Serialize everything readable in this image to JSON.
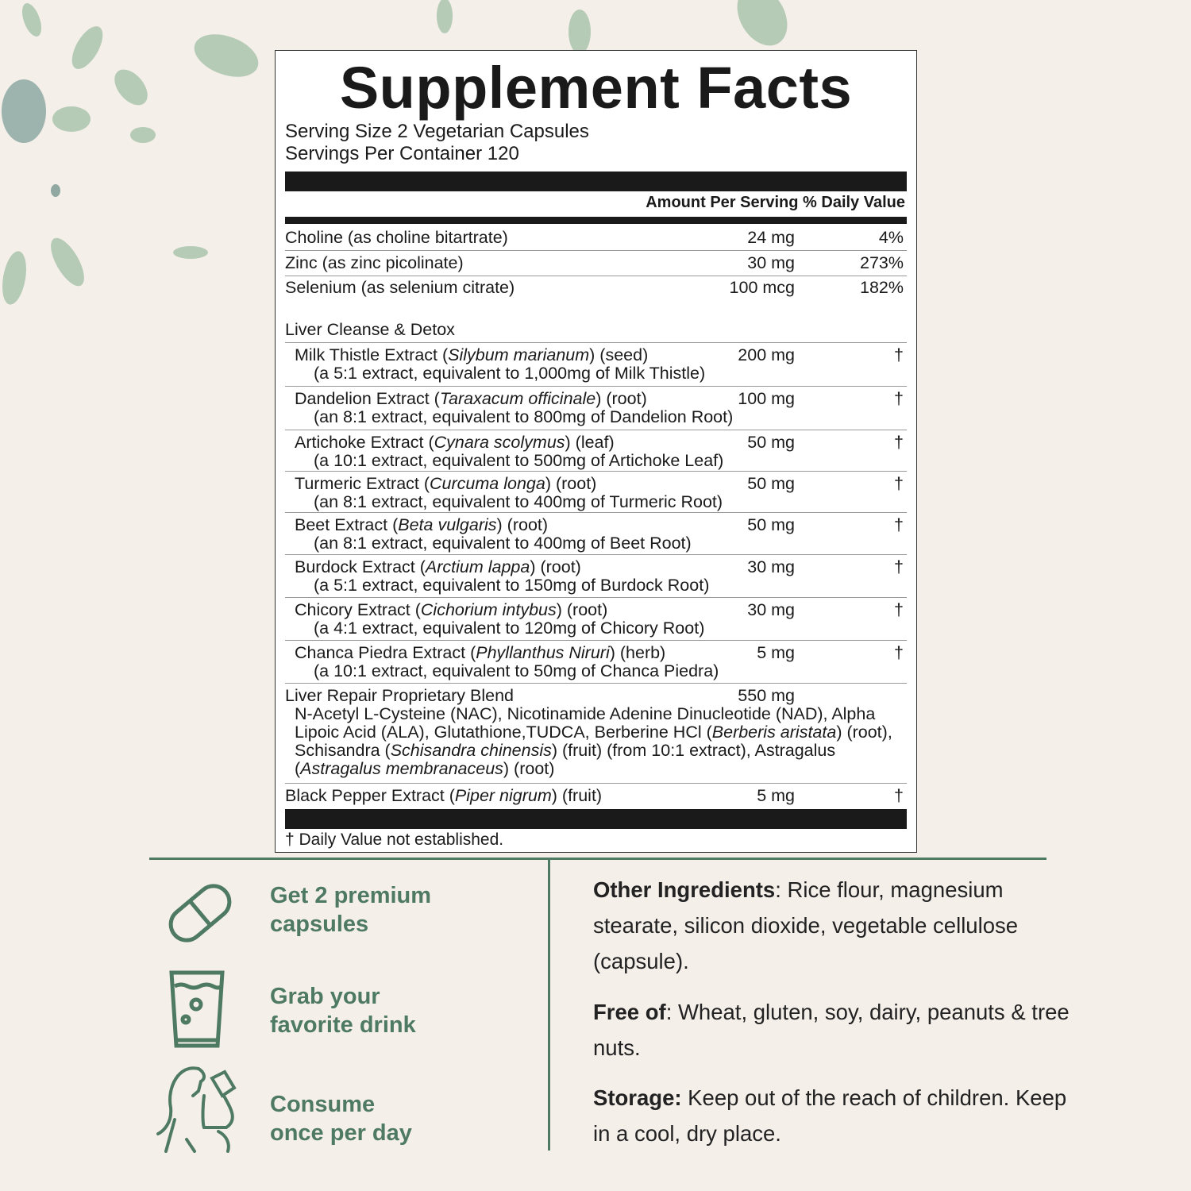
{
  "title": "Supplement Facts",
  "serving_size": "Serving Size 2 Vegetarian Capsules",
  "servings_per_container": "Servings Per Container 120",
  "header": "Amount Per Serving % Daily Value",
  "vitamins": [
    {
      "name": "Choline (as choline bitartrate)",
      "amount": "24 mg",
      "dv": "4%"
    },
    {
      "name": "Zinc (as zinc picolinate)",
      "amount": "30 mg",
      "dv": "273%"
    },
    {
      "name": "Selenium (as selenium citrate)",
      "amount": "100 mcg",
      "dv": "182%"
    }
  ],
  "group_label": "Liver Cleanse & Detox",
  "extracts": [
    {
      "prefix": "Milk Thistle Extract (",
      "latin": "Silybum marianum",
      "suffix": ") (seed)",
      "detail": "(a 5:1 extract, equivalent to 1,000mg of Milk Thistle)",
      "amount": "200 mg",
      "dv": "†"
    },
    {
      "prefix": "Dandelion Extract (",
      "latin": "Taraxacum officinale",
      "suffix": ") (root)",
      "detail": "(an 8:1 extract, equivalent to 800mg of Dandelion Root)",
      "amount": "100 mg",
      "dv": "†"
    },
    {
      "prefix": "Artichoke Extract (",
      "latin": "Cynara scolymus",
      "suffix": ") (leaf)",
      "detail": "(a 10:1 extract, equivalent to 500mg of Artichoke Leaf)",
      "amount": "50 mg",
      "dv": "†"
    },
    {
      "prefix": "Turmeric Extract (",
      "latin": "Curcuma longa",
      "suffix": ") (root)",
      "detail": "(an 8:1 extract, equivalent to 400mg of Turmeric Root)",
      "amount": "50 mg",
      "dv": "†"
    },
    {
      "prefix": "Beet Extract (",
      "latin": "Beta vulgaris",
      "suffix": ") (root)",
      "detail": "(an 8:1 extract, equivalent to 400mg of Beet Root)",
      "amount": "50 mg",
      "dv": "†"
    },
    {
      "prefix": "Burdock Extract (",
      "latin": "Arctium lappa",
      "suffix": ") (root)",
      "detail": "(a 5:1 extract, equivalent to 150mg of Burdock Root)",
      "amount": "30 mg",
      "dv": "†"
    },
    {
      "prefix": "Chicory Extract (",
      "latin": "Cichorium intybus",
      "suffix": ") (root)",
      "detail": "(a 4:1 extract, equivalent to 120mg of Chicory Root)",
      "amount": "30 mg",
      "dv": "†"
    },
    {
      "prefix": "Chanca Piedra Extract (",
      "latin": "Phyllanthus Niruri",
      "suffix": ") (herb)",
      "detail": "(a 10:1 extract, equivalent to 50mg of Chanca Piedra)",
      "amount": "5 mg",
      "dv": "†"
    }
  ],
  "blend": {
    "name": "Liver Repair Proprietary Blend",
    "amount": "550 mg",
    "segments": [
      {
        "t": "N-Acetyl L-Cysteine (NAC), Nicotinamide Adenine Dinucleotide (NAD), Alpha Lipoic Acid (ALA), Glutathione,TUDCA, Berberine HCl (",
        "i": false
      },
      {
        "t": "Berberis aristata",
        "i": true
      },
      {
        "t": ") (root), Schisandra (",
        "i": false
      },
      {
        "t": "Schisandra chinensis",
        "i": true
      },
      {
        "t": ") (fruit) (from 10:1 extract), Astragalus (",
        "i": false
      },
      {
        "t": "Astragalus membranaceus",
        "i": true
      },
      {
        "t": ") (root)",
        "i": false
      }
    ]
  },
  "black_pepper": {
    "prefix": "Black Pepper Extract (",
    "latin": "Piper nigrum",
    "suffix": ") (fruit)",
    "amount": "5 mg",
    "dv": "†"
  },
  "footnote": "† Daily Value not established.",
  "steps": [
    {
      "icon": "capsule-icon",
      "line1": "Get 2 premium",
      "line2": "capsules"
    },
    {
      "icon": "glass-icon",
      "line1": "Grab your",
      "line2": "favorite drink"
    },
    {
      "icon": "woman-drinking-icon",
      "line1": "Consume",
      "line2": "once per day"
    }
  ],
  "info": [
    {
      "label": "Other Ingredients",
      "sep": ":",
      "text": " Rice flour, magnesium stearate, silicon dioxide, vegetable cellulose (capsule)."
    },
    {
      "label": "Free of",
      "sep": ":",
      "text": " Wheat, gluten, soy, dairy, peanuts & tree nuts."
    },
    {
      "label": "Storage:",
      "sep": "",
      "text": " Keep out of the reach of children. Keep in a cool, dry place."
    }
  ],
  "colors": {
    "accent": "#4e7a62",
    "background": "#f5efea",
    "label_black": "#1a1a1a"
  }
}
